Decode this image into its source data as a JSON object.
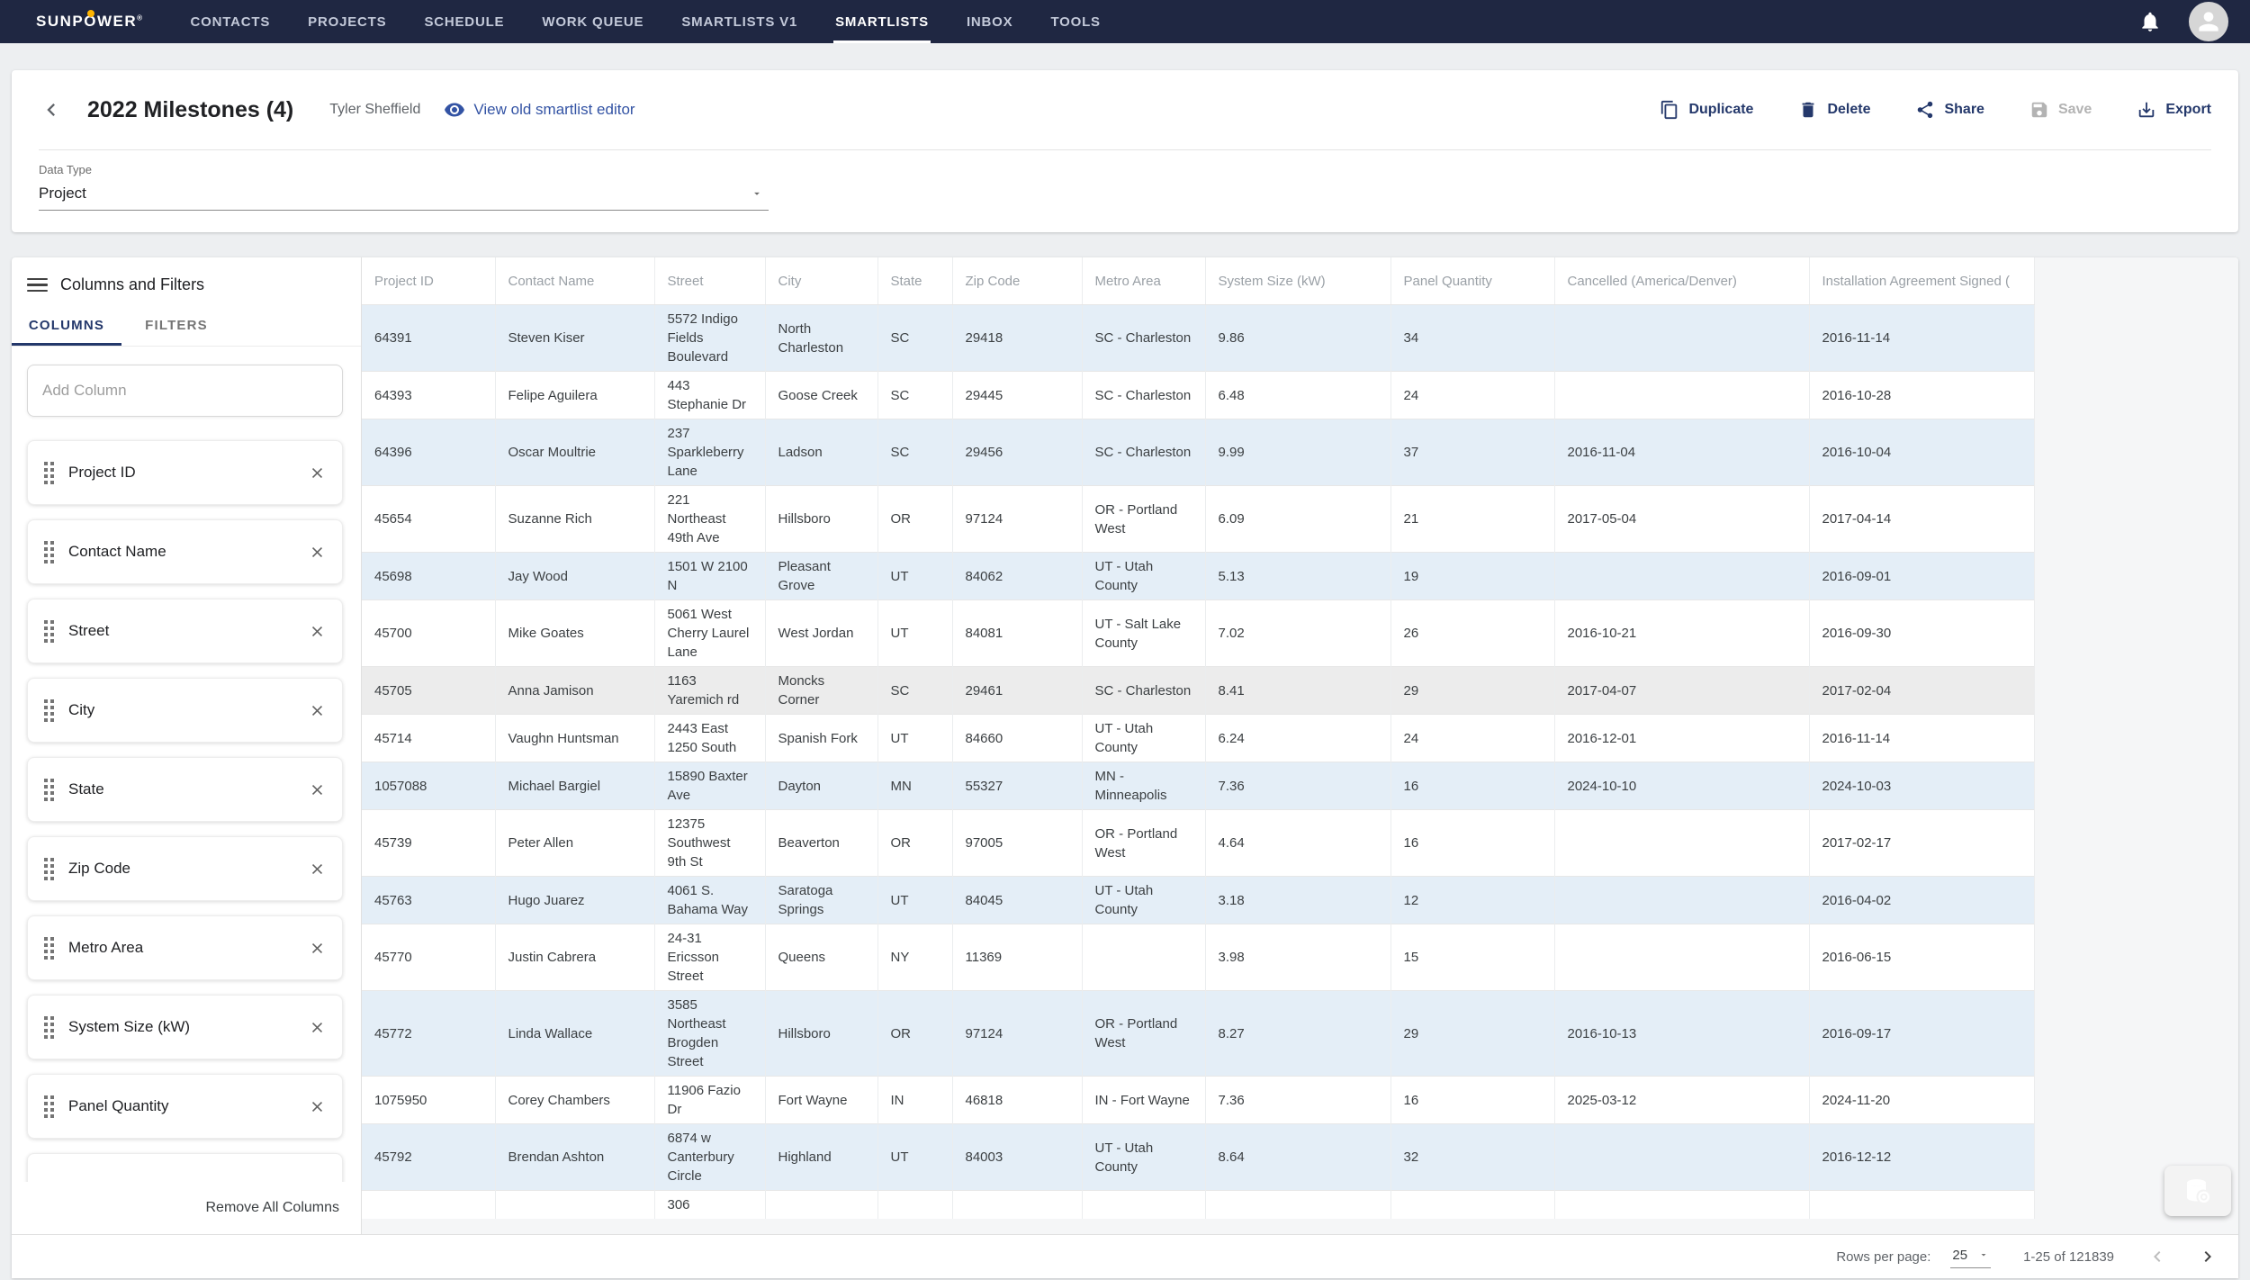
{
  "nav": {
    "logo": {
      "pre": "SUNP",
      "o": "O",
      "post": "WER",
      "reg": "®"
    },
    "items": [
      {
        "label": "CONTACTS"
      },
      {
        "label": "PROJECTS"
      },
      {
        "label": "SCHEDULE"
      },
      {
        "label": "WORK QUEUE"
      },
      {
        "label": "SMARTLISTS V1"
      },
      {
        "label": "SMARTLISTS",
        "active": true
      },
      {
        "label": "INBOX"
      },
      {
        "label": "TOOLS",
        "chevron": true
      }
    ],
    "icons": [
      "bell-icon",
      "avatar-person-icon"
    ]
  },
  "header": {
    "title": "2022 Milestones (4)",
    "owner": "Tyler Sheffield",
    "view_old_editor": "View old smartlist editor",
    "actions": [
      {
        "label": "Duplicate",
        "icon": "duplicate-icon"
      },
      {
        "label": "Delete",
        "icon": "trash-icon"
      },
      {
        "label": "Share",
        "icon": "share-icon"
      },
      {
        "label": "Save",
        "icon": "save-icon",
        "disabled": true
      },
      {
        "label": "Export",
        "icon": "export-icon"
      }
    ]
  },
  "data_type": {
    "label": "Data Type",
    "value": "Project"
  },
  "panel": {
    "title": "Columns and Filters",
    "tabs": [
      {
        "label": "COLUMNS",
        "active": true
      },
      {
        "label": "FILTERS"
      }
    ],
    "add_column_placeholder": "Add Column",
    "columns": [
      "Project ID",
      "Contact Name",
      "Street",
      "City",
      "State",
      "Zip Code",
      "Metro Area",
      "System Size (kW)",
      "Panel Quantity"
    ],
    "remove_all_label": "Remove All Columns"
  },
  "table": {
    "headers": [
      "Project ID",
      "Contact Name",
      "Street",
      "City",
      "State",
      "Zip Code",
      "Metro Area",
      "System Size (kW)",
      "Panel Quantity",
      "Cancelled (America/Denver)",
      "Installation Agreement Signed ("
    ],
    "rows": [
      {
        "id": "64391",
        "contact": "Steven Kiser",
        "street": "5572 Indigo Fields Boulevard",
        "city": "North Charleston",
        "state": "SC",
        "zip": "29418",
        "metro": "SC - Charleston",
        "size": "9.86",
        "panels": "34",
        "cancelled": "",
        "signed": "2016-11-14"
      },
      {
        "id": "64393",
        "contact": "Felipe Aguilera",
        "street": "443 Stephanie Dr",
        "city": "Goose Creek",
        "state": "SC",
        "zip": "29445",
        "metro": "SC - Charleston",
        "size": "6.48",
        "panels": "24",
        "cancelled": "",
        "signed": "2016-10-28"
      },
      {
        "id": "64396",
        "contact": "Oscar Moultrie",
        "street": "237 Sparkleberry Lane",
        "city": "Ladson",
        "state": "SC",
        "zip": "29456",
        "metro": "SC - Charleston",
        "size": "9.99",
        "panels": "37",
        "cancelled": "2016-11-04",
        "signed": "2016-10-04"
      },
      {
        "id": "45654",
        "contact": "Suzanne Rich",
        "street": "221 Northeast 49th Ave",
        "city": "Hillsboro",
        "state": "OR",
        "zip": "97124",
        "metro": "OR - Portland West",
        "size": "6.09",
        "panels": "21",
        "cancelled": "2017-05-04",
        "signed": "2017-04-14"
      },
      {
        "id": "45698",
        "contact": "Jay Wood",
        "street": "1501 W 2100 N",
        "city": "Pleasant Grove",
        "state": "UT",
        "zip": "84062",
        "metro": "UT - Utah County",
        "size": "5.13",
        "panels": "19",
        "cancelled": "",
        "signed": "2016-09-01"
      },
      {
        "id": "45700",
        "contact": "Mike Goates",
        "street": "5061 West Cherry Laurel Lane",
        "city": "West Jordan",
        "state": "UT",
        "zip": "84081",
        "metro": "UT - Salt Lake County",
        "size": "7.02",
        "panels": "26",
        "cancelled": "2016-10-21",
        "signed": "2016-09-30"
      },
      {
        "id": "45705",
        "contact": "Anna Jamison",
        "street": "1163 Yaremich rd",
        "city": "Moncks Corner",
        "state": "SC",
        "zip": "29461",
        "metro": "SC - Charleston",
        "size": "8.41",
        "panels": "29",
        "cancelled": "2017-04-07",
        "signed": "2017-02-04",
        "hover": true
      },
      {
        "id": "45714",
        "contact": "Vaughn Huntsman",
        "street": "2443 East 1250 South",
        "city": "Spanish Fork",
        "state": "UT",
        "zip": "84660",
        "metro": "UT - Utah County",
        "size": "6.24",
        "panels": "24",
        "cancelled": "2016-12-01",
        "signed": "2016-11-14"
      },
      {
        "id": "1057088",
        "contact": "Michael Bargiel",
        "street": "15890 Baxter Ave",
        "city": "Dayton",
        "state": "MN",
        "zip": "55327",
        "metro": "MN - Minneapolis",
        "size": "7.36",
        "panels": "16",
        "cancelled": "2024-10-10",
        "signed": "2024-10-03"
      },
      {
        "id": "45739",
        "contact": "Peter Allen",
        "street": "12375 Southwest 9th St",
        "city": "Beaverton",
        "state": "OR",
        "zip": "97005",
        "metro": "OR - Portland West",
        "size": "4.64",
        "panels": "16",
        "cancelled": "",
        "signed": "2017-02-17"
      },
      {
        "id": "45763",
        "contact": "Hugo Juarez",
        "street": "4061 S. Bahama Way",
        "city": "Saratoga Springs",
        "state": "UT",
        "zip": "84045",
        "metro": "UT - Utah County",
        "size": "3.18",
        "panels": "12",
        "cancelled": "",
        "signed": "2016-04-02"
      },
      {
        "id": "45770",
        "contact": "Justin Cabrera",
        "street": "24-31 Ericsson Street",
        "city": "Queens",
        "state": "NY",
        "zip": "11369",
        "metro": "",
        "size": "3.98",
        "panels": "15",
        "cancelled": "",
        "signed": "2016-06-15"
      },
      {
        "id": "45772",
        "contact": "Linda Wallace",
        "street": "3585 Northeast Brogden Street",
        "city": "Hillsboro",
        "state": "OR",
        "zip": "97124",
        "metro": "OR - Portland West",
        "size": "8.27",
        "panels": "29",
        "cancelled": "2016-10-13",
        "signed": "2016-09-17"
      },
      {
        "id": "1075950",
        "contact": "Corey Chambers",
        "street": "11906 Fazio Dr",
        "city": "Fort Wayne",
        "state": "IN",
        "zip": "46818",
        "metro": "IN - Fort Wayne",
        "size": "7.36",
        "panels": "16",
        "cancelled": "2025-03-12",
        "signed": "2024-11-20"
      },
      {
        "id": "45792",
        "contact": "Brendan Ashton",
        "street": "6874 w Canterbury Circle",
        "city": "Highland",
        "state": "UT",
        "zip": "84003",
        "metro": "UT - Utah County",
        "size": "8.64",
        "panels": "32",
        "cancelled": "",
        "signed": "2016-12-12"
      },
      {
        "id": "",
        "contact": "",
        "street": "306",
        "city": "",
        "state": "",
        "zip": "",
        "metro": "",
        "size": "",
        "panels": "",
        "cancelled": "",
        "signed": ""
      }
    ]
  },
  "pagination": {
    "rows_per_page_label": "Rows per page:",
    "rows_per_page_value": "25",
    "range_label": "1-25 of 121839"
  }
}
